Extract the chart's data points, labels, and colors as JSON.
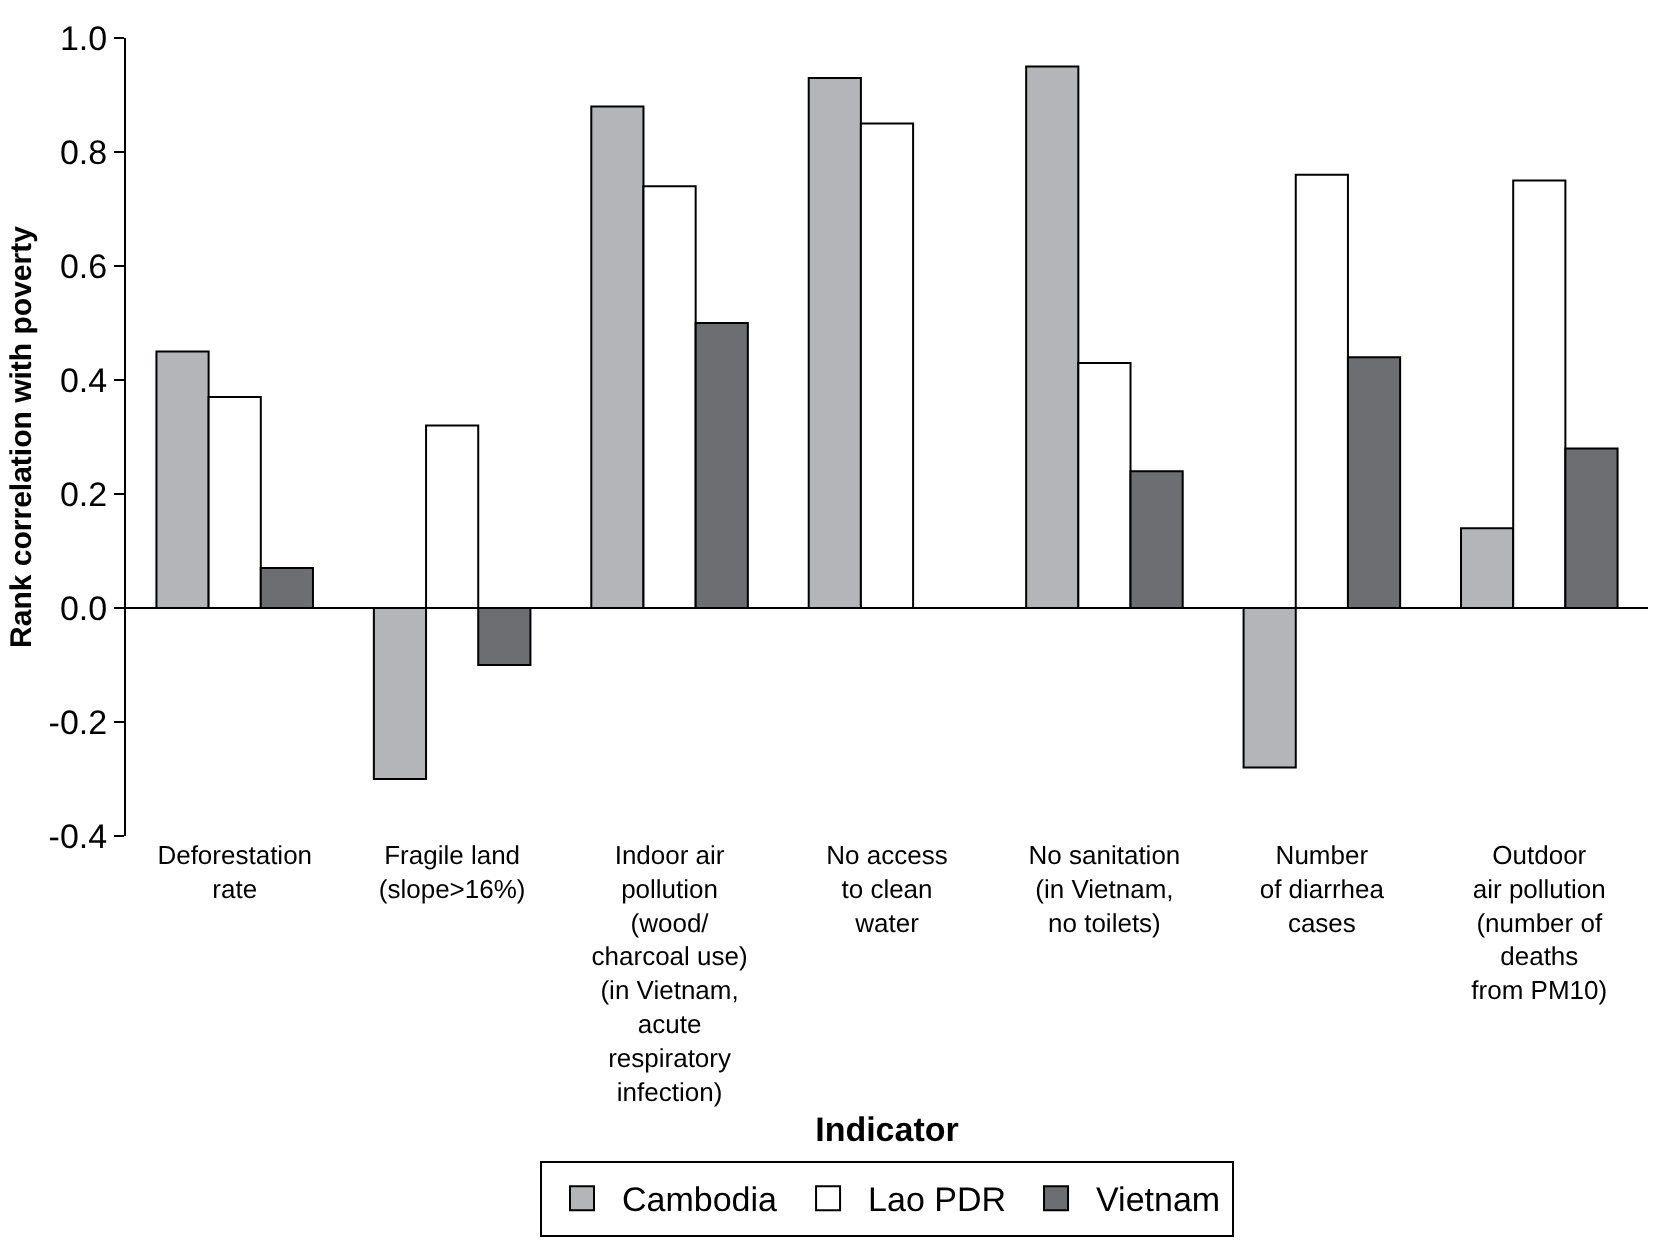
{
  "chart_data": {
    "type": "bar",
    "xlabel": "Indicator",
    "ylabel": "Rank correlation with poverty",
    "categories": [
      "Deforestation\nrate",
      "Fragile land\n(slope>16%)",
      "Indoor air\npollution\n(wood/\ncharcoal use)\n(in Vietnam,\nacute\nrespiratory\ninfection)",
      "No access\nto clean\nwater",
      "No sanitation\n(in Vietnam,\nno toilets)",
      "Number\nof diarrhea\ncases",
      "Outdoor\nair pollution\n(number of\ndeaths\nfrom PM10)"
    ],
    "series": [
      {
        "name": "Cambodia",
        "color": "#b3b5b8",
        "values": [
          0.45,
          -0.3,
          0.88,
          0.93,
          0.95,
          -0.28,
          0.14
        ]
      },
      {
        "name": "Lao PDR",
        "color": "#ffffff",
        "values": [
          0.37,
          0.32,
          0.74,
          0.85,
          0.43,
          0.76,
          0.75
        ]
      },
      {
        "name": "Vietnam",
        "color": "#6d6e71",
        "values": [
          0.07,
          -0.1,
          0.5,
          null,
          0.24,
          0.44,
          0.28
        ]
      }
    ],
    "ylim": [
      -0.4,
      1.0
    ],
    "yticks": [
      {
        "value": -0.4,
        "label": "-0.4"
      },
      {
        "value": -0.2,
        "label": "-0.2"
      },
      {
        "value": 0,
        "label": "0.0"
      },
      {
        "value": 0.2,
        "label": "0.2"
      },
      {
        "value": 0.4,
        "label": "0.4"
      },
      {
        "value": 0.6,
        "label": "0.6"
      },
      {
        "value": 0.8,
        "label": "0.8"
      },
      {
        "value": 1.0,
        "label": "1.0"
      }
    ],
    "legend": "bottom"
  }
}
